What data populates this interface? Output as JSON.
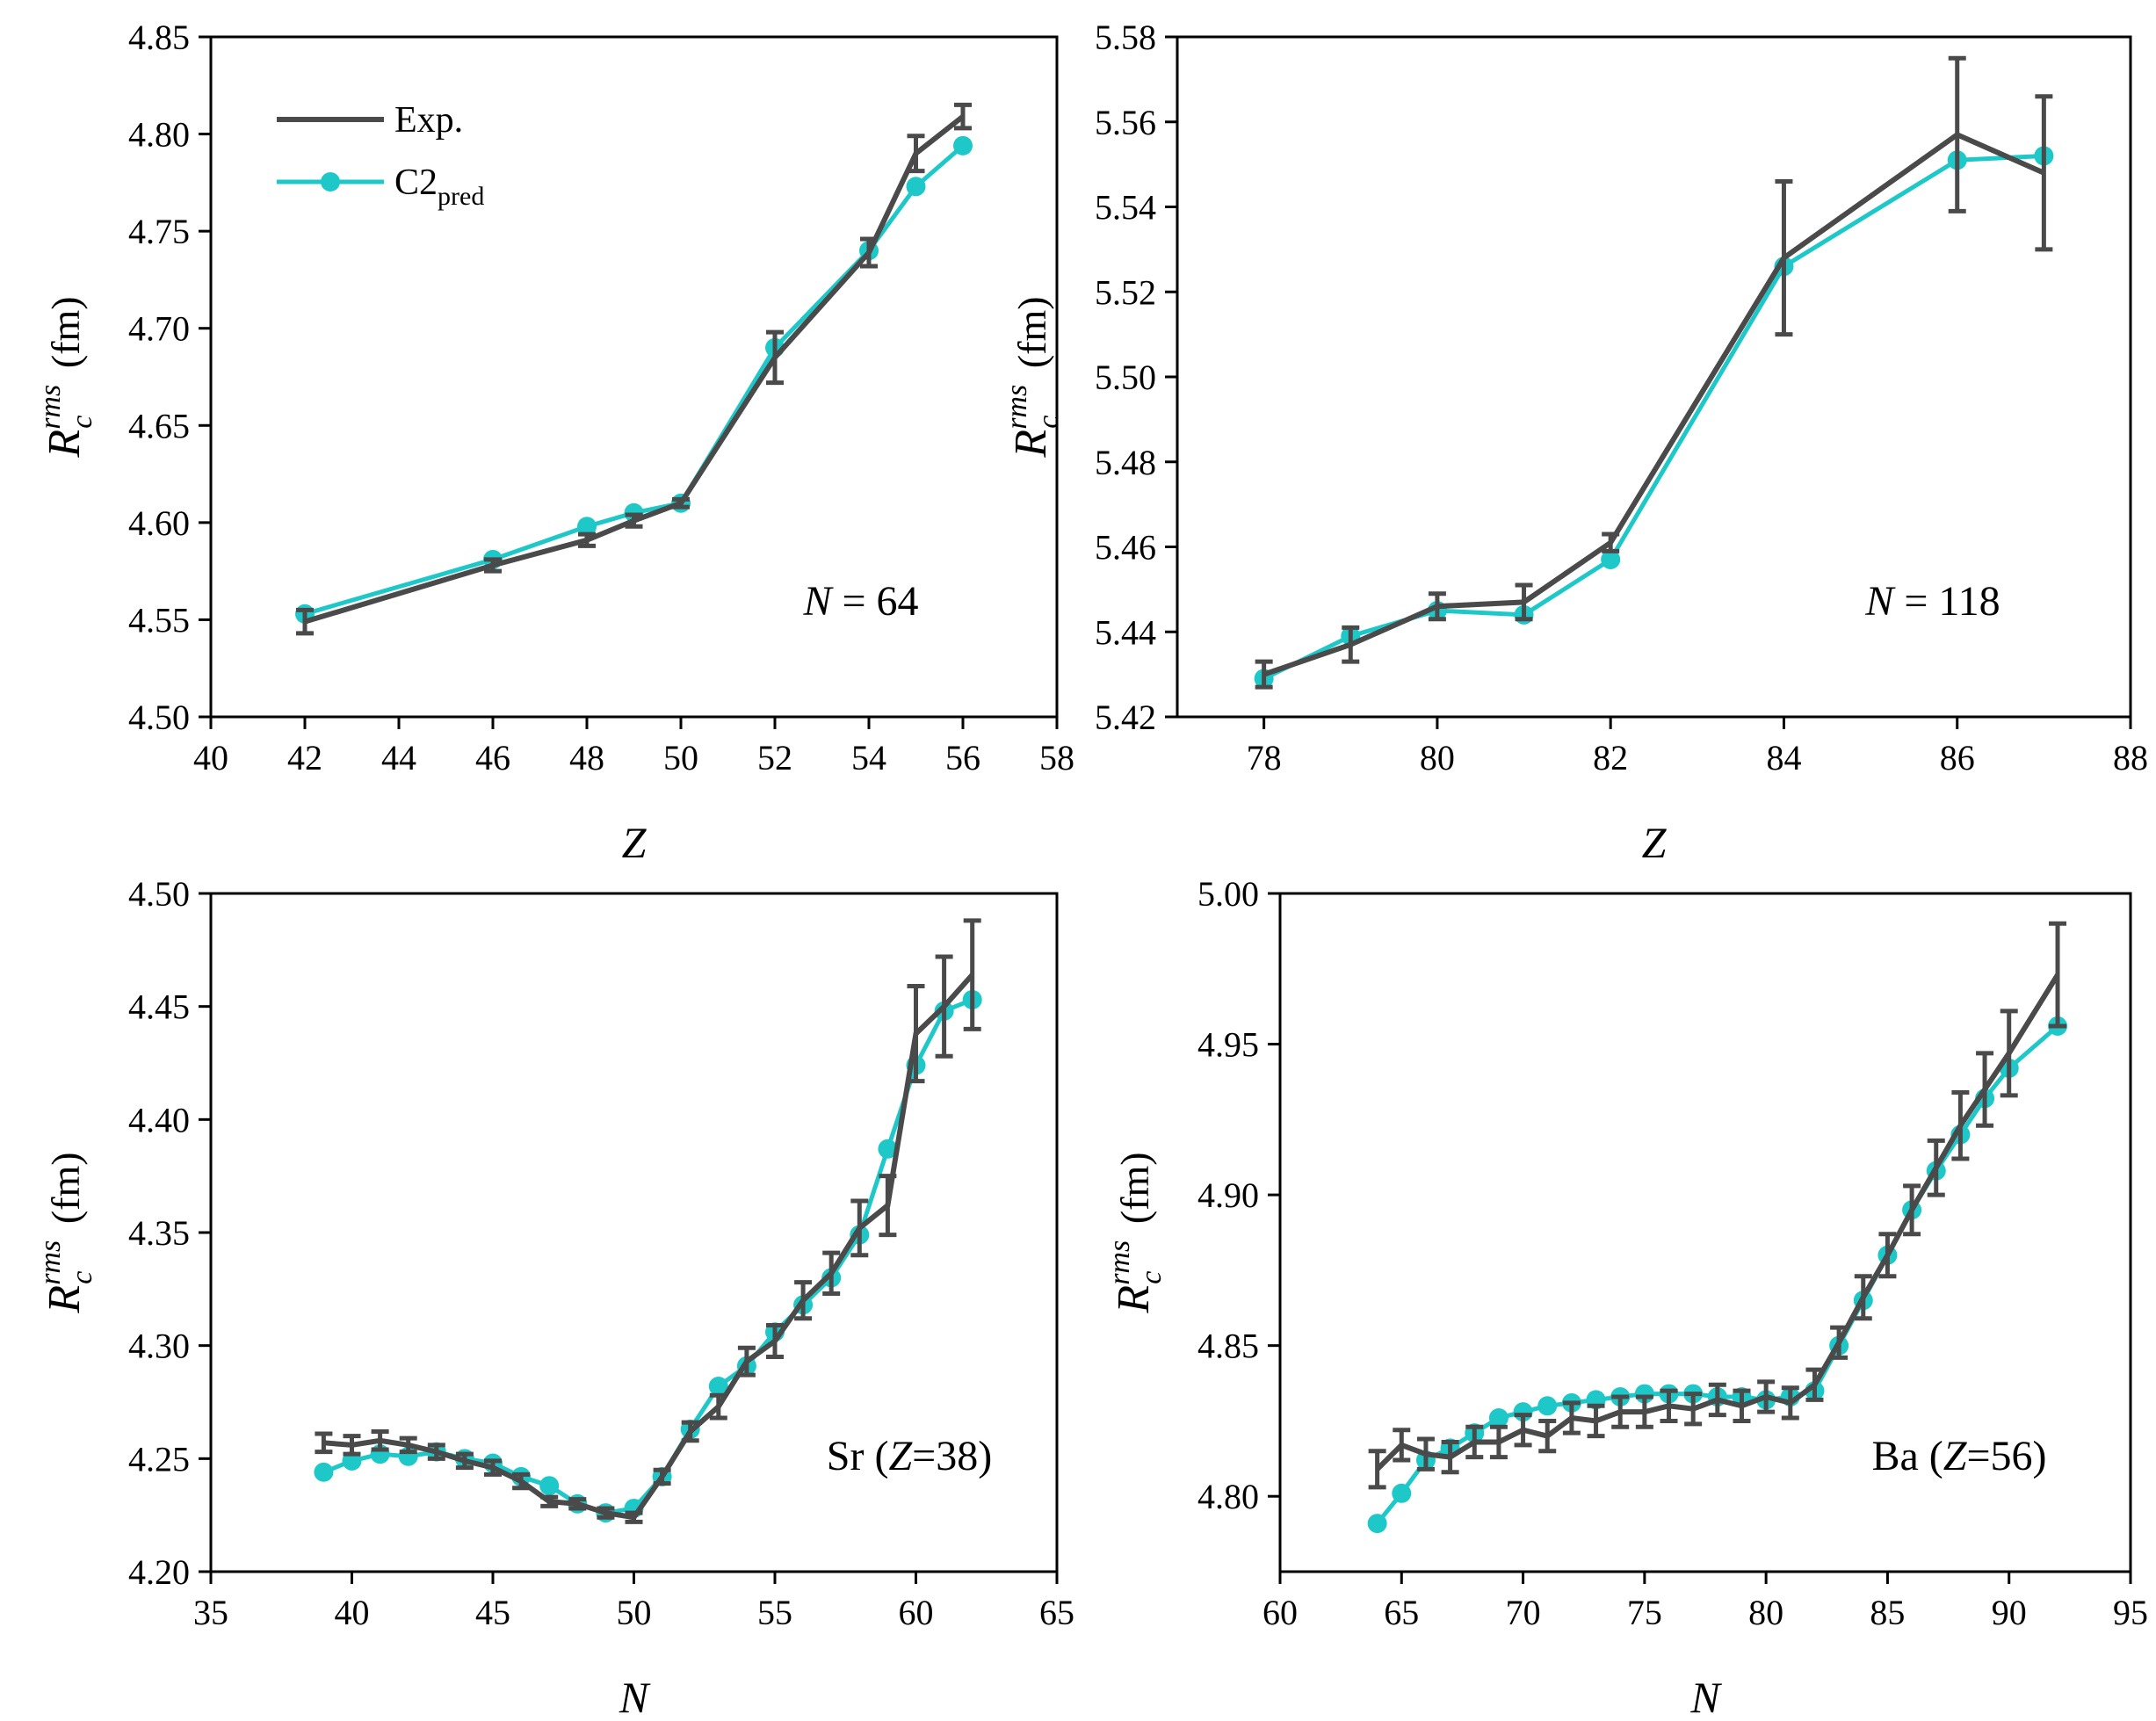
{
  "legend": {
    "exp_label": "Exp.",
    "pred_label_main": "C2",
    "pred_label_sub": "pred"
  },
  "colors": {
    "exp": "#4a4a4a",
    "pred": "#1fc8c8",
    "axis": "#000000"
  },
  "y_axis_label": {
    "main": "R",
    "sub": "c",
    "sup": "rms",
    "unit": "(fm)"
  },
  "chart_data": [
    {
      "type": "line",
      "id": "p1",
      "annotation": {
        "italic": "N",
        "rest": " = 64"
      },
      "xlabel": "Z",
      "ylabel": "R_c^rms (fm)",
      "xlim": [
        40,
        58
      ],
      "ylim": [
        4.5,
        4.85
      ],
      "xticks": [
        40,
        42,
        44,
        46,
        48,
        50,
        52,
        54,
        56,
        58
      ],
      "yticks": [
        4.5,
        4.55,
        4.6,
        4.65,
        4.7,
        4.75,
        4.8,
        4.85
      ],
      "ydec": 2,
      "series": [
        {
          "name": "Exp.",
          "x": [
            42,
            46,
            48,
            49,
            50,
            52,
            54,
            55,
            56
          ],
          "y": [
            4.549,
            4.578,
            4.591,
            4.601,
            4.61,
            4.685,
            4.739,
            4.79,
            4.809
          ],
          "err": [
            0.006,
            0.003,
            0.003,
            0.003,
            0.002,
            0.013,
            0.007,
            0.009,
            0.006
          ]
        },
        {
          "name": "C2pred",
          "x": [
            42,
            46,
            48,
            49,
            50,
            52,
            54,
            55,
            56
          ],
          "y": [
            4.553,
            4.581,
            4.598,
            4.605,
            4.61,
            4.69,
            4.74,
            4.773,
            4.794
          ]
        }
      ],
      "legend_in_panel": true
    },
    {
      "type": "line",
      "id": "p2",
      "annotation": {
        "italic": "N",
        "rest": " = 118"
      },
      "xlabel": "Z",
      "ylabel": "R_c^rms (fm)",
      "xlim": [
        77,
        88
      ],
      "ylim": [
        5.42,
        5.58
      ],
      "xticks": [
        78,
        80,
        82,
        84,
        86,
        88
      ],
      "yticks": [
        5.42,
        5.44,
        5.46,
        5.48,
        5.5,
        5.52,
        5.54,
        5.56,
        5.58
      ],
      "ydec": 2,
      "series": [
        {
          "name": "Exp.",
          "x": [
            78,
            79,
            80,
            81,
            82,
            84,
            86,
            87
          ],
          "y": [
            5.43,
            5.437,
            5.446,
            5.447,
            5.461,
            5.528,
            5.557,
            5.548
          ],
          "err": [
            0.003,
            0.004,
            0.003,
            0.004,
            0.002,
            0.018,
            0.018,
            0.018
          ]
        },
        {
          "name": "C2pred",
          "x": [
            78,
            79,
            80,
            81,
            82,
            84,
            86,
            87
          ],
          "y": [
            5.429,
            5.439,
            5.445,
            5.444,
            5.457,
            5.526,
            5.551,
            5.552
          ]
        }
      ],
      "legend_in_panel": false
    },
    {
      "type": "line",
      "id": "p3",
      "annotation": {
        "pre": "Sr (",
        "italic": "Z",
        "rest": "=38)"
      },
      "xlabel": "N",
      "ylabel": "R_c^rms (fm)",
      "xlim": [
        35,
        65
      ],
      "ylim": [
        4.2,
        4.5
      ],
      "xticks": [
        35,
        40,
        45,
        50,
        55,
        60,
        65
      ],
      "yticks": [
        4.2,
        4.25,
        4.3,
        4.35,
        4.4,
        4.45,
        4.5
      ],
      "ydec": 2,
      "series": [
        {
          "name": "Exp.",
          "x": [
            39,
            40,
            41,
            42,
            43,
            44,
            45,
            46,
            47,
            48,
            49,
            50,
            51,
            52,
            53,
            54,
            55,
            56,
            57,
            58,
            59,
            60,
            61,
            62
          ],
          "y": [
            4.257,
            4.256,
            4.258,
            4.256,
            4.253,
            4.249,
            4.246,
            4.24,
            4.231,
            4.23,
            4.226,
            4.224,
            4.242,
            4.262,
            4.273,
            4.293,
            4.302,
            4.32,
            4.332,
            4.352,
            4.362,
            4.438,
            4.45,
            4.464
          ],
          "err": [
            0.004,
            0.004,
            0.004,
            0.003,
            0.003,
            0.003,
            0.003,
            0.003,
            0.002,
            0.002,
            0.002,
            0.002,
            0.003,
            0.004,
            0.005,
            0.006,
            0.007,
            0.008,
            0.009,
            0.012,
            0.013,
            0.021,
            0.022,
            0.024
          ]
        },
        {
          "name": "C2pred",
          "x": [
            39,
            40,
            41,
            42,
            43,
            44,
            45,
            46,
            47,
            48,
            49,
            50,
            51,
            52,
            53,
            54,
            55,
            56,
            57,
            58,
            59,
            60,
            61,
            62
          ],
          "y": [
            4.244,
            4.249,
            4.252,
            4.251,
            4.253,
            4.25,
            4.248,
            4.242,
            4.238,
            4.23,
            4.226,
            4.228,
            4.242,
            4.263,
            4.282,
            4.291,
            4.306,
            4.318,
            4.33,
            4.349,
            4.387,
            4.424,
            4.448,
            4.453
          ]
        }
      ],
      "legend_in_panel": false
    },
    {
      "type": "line",
      "id": "p4",
      "annotation": {
        "pre": "Ba (",
        "italic": "Z",
        "rest": "=56)"
      },
      "xlabel": "N",
      "ylabel": "R_c^rms (fm)",
      "xlim": [
        60,
        95
      ],
      "ylim": [
        4.775,
        5.0
      ],
      "xticks": [
        60,
        65,
        70,
        75,
        80,
        85,
        90,
        95
      ],
      "yticks": [
        4.8,
        4.85,
        4.9,
        4.95,
        5.0
      ],
      "ydec": 2,
      "series": [
        {
          "name": "Exp.",
          "x": [
            64,
            65,
            66,
            67,
            68,
            69,
            70,
            71,
            72,
            73,
            74,
            75,
            76,
            77,
            78,
            79,
            80,
            81,
            82,
            83,
            84,
            85,
            86,
            87,
            88,
            89,
            90,
            92
          ],
          "y": [
            4.809,
            4.817,
            4.814,
            4.813,
            4.818,
            4.818,
            4.822,
            4.82,
            4.826,
            4.825,
            4.828,
            4.828,
            4.83,
            4.829,
            4.832,
            4.83,
            4.833,
            4.831,
            4.837,
            4.851,
            4.866,
            4.88,
            4.895,
            4.909,
            4.923,
            4.935,
            4.947,
            4.973
          ],
          "err": [
            0.006,
            0.005,
            0.005,
            0.005,
            0.005,
            0.005,
            0.005,
            0.005,
            0.005,
            0.005,
            0.005,
            0.005,
            0.005,
            0.005,
            0.005,
            0.005,
            0.005,
            0.005,
            0.005,
            0.005,
            0.007,
            0.007,
            0.008,
            0.009,
            0.011,
            0.012,
            0.014,
            0.017
          ]
        },
        {
          "name": "C2pred",
          "x": [
            64,
            65,
            66,
            67,
            68,
            69,
            70,
            71,
            72,
            73,
            74,
            75,
            76,
            77,
            78,
            79,
            80,
            81,
            82,
            83,
            84,
            85,
            86,
            87,
            88,
            89,
            90,
            92
          ],
          "y": [
            4.791,
            4.801,
            4.812,
            4.816,
            4.821,
            4.826,
            4.828,
            4.83,
            4.831,
            4.832,
            4.833,
            4.834,
            4.834,
            4.834,
            4.833,
            4.833,
            4.832,
            4.833,
            4.835,
            4.85,
            4.865,
            4.88,
            4.895,
            4.908,
            4.92,
            4.932,
            4.942,
            4.956
          ]
        }
      ],
      "legend_in_panel": false
    }
  ]
}
